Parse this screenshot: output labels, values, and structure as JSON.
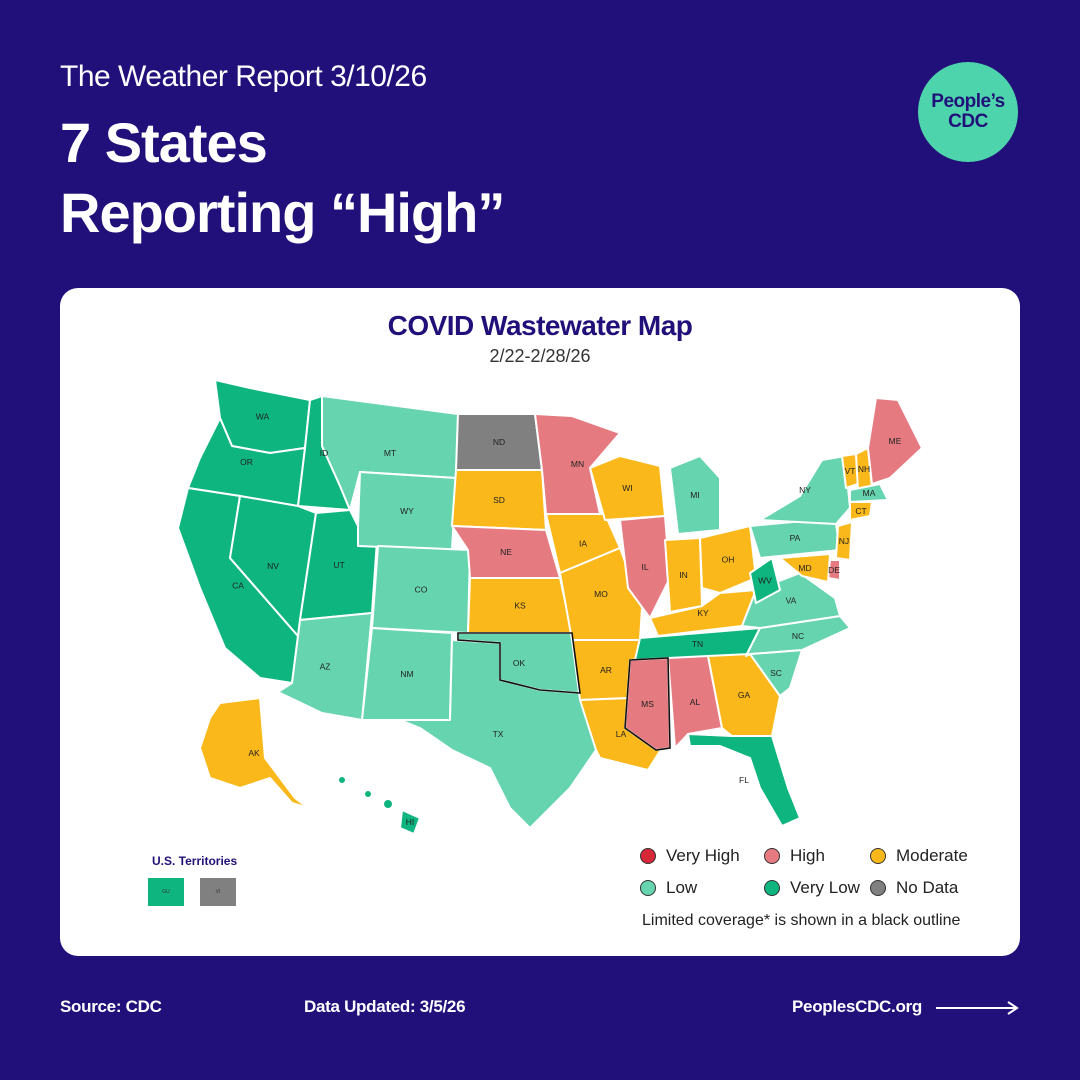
{
  "header": {
    "subtitle": "The Weather Report 3/10/26",
    "title_line1": "7 States",
    "title_line2": "Reporting “High”",
    "logo_line1": "People’s",
    "logo_line2": "CDC"
  },
  "map": {
    "title": "COVID Wastewater Map",
    "dates": "2/22-2/28/26",
    "colors": {
      "very_high": "#d62839",
      "high": "#e57b80",
      "moderate": "#fbb81b",
      "low": "#67d4b0",
      "very_low": "#0fb57e",
      "no_data": "#808080"
    },
    "states": {
      "WA": "very_low",
      "OR": "very_low",
      "CA": "very_low",
      "ID": "very_low",
      "NV": "very_low",
      "UT": "very_low",
      "AZ": "low",
      "MT": "low",
      "WY": "low",
      "CO": "low",
      "NM": "low",
      "ND": "no_data",
      "SD": "moderate",
      "NE": "high",
      "KS": "moderate",
      "OK": "low",
      "TX": "low",
      "MN": "high",
      "IA": "moderate",
      "MO": "moderate",
      "AR": "moderate",
      "LA": "moderate",
      "WI": "moderate",
      "IL": "high",
      "MI": "low",
      "IN": "moderate",
      "OH": "moderate",
      "KY": "moderate",
      "TN": "very_low",
      "MS": "high",
      "AL": "high",
      "GA": "moderate",
      "FL": "very_low",
      "SC": "low",
      "NC": "low",
      "VA": "low",
      "WV": "very_low",
      "PA": "low",
      "NY": "low",
      "VT": "moderate",
      "NH": "moderate",
      "ME": "high",
      "MA": "low",
      "CT": "moderate",
      "NJ": "moderate",
      "DE": "high",
      "MD": "moderate",
      "AK": "moderate",
      "HI": "very_low"
    },
    "limited_coverage": [
      "OK",
      "MS"
    ],
    "territories": {
      "title": "U.S. Territories",
      "items": [
        {
          "code": "GU",
          "status": "very_low"
        },
        {
          "code": "VI",
          "status": "no_data"
        }
      ]
    },
    "legend": {
      "items": [
        {
          "label": "Very High",
          "status": "very_high"
        },
        {
          "label": "High",
          "status": "high"
        },
        {
          "label": "Moderate",
          "status": "moderate"
        },
        {
          "label": "Low",
          "status": "low"
        },
        {
          "label": "Very Low",
          "status": "very_low"
        },
        {
          "label": "No Data",
          "status": "no_data"
        }
      ],
      "note": "Limited coverage* is shown in a black outline"
    }
  },
  "footer": {
    "source": "Source: CDC",
    "updated": "Data Updated: 3/5/26",
    "site": "PeoplesCDC.org",
    "arrow_icon": "arrow-right-icon"
  }
}
